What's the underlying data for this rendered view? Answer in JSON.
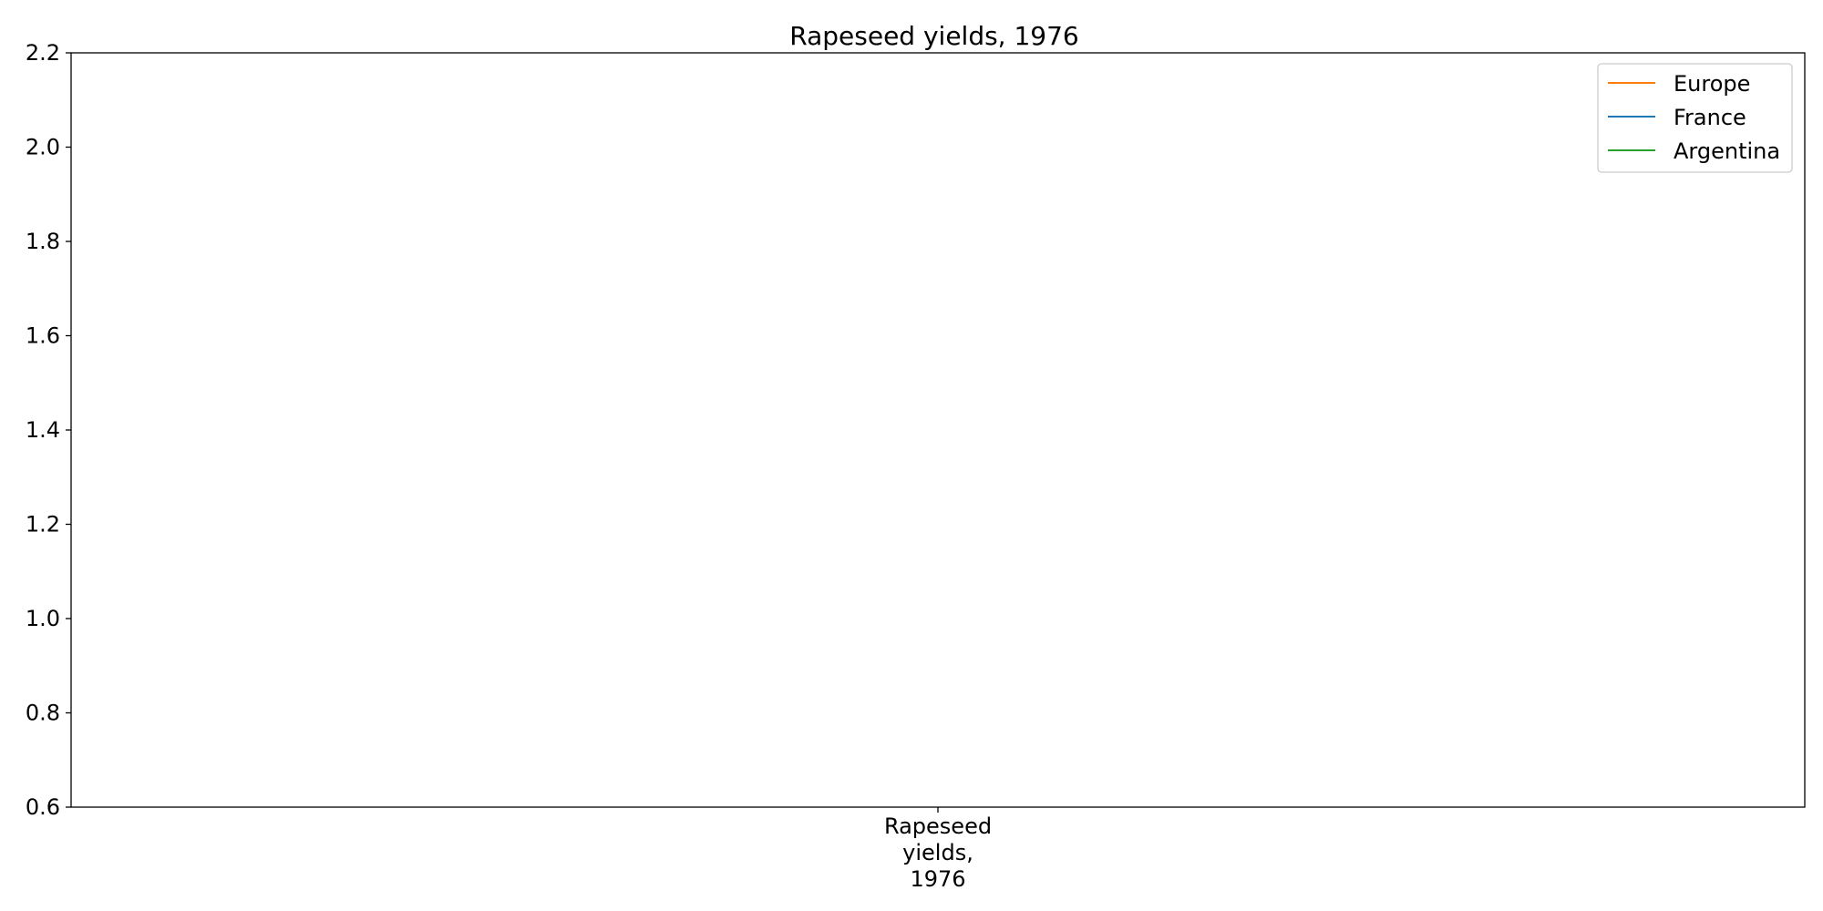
{
  "chart_data": {
    "type": "line",
    "title": "Rapeseed yields, 1976",
    "xlabel": "",
    "ylabel": "",
    "categories": [
      "Rapeseed yields, 1976"
    ],
    "category_label_lines": [
      "Rapeseed",
      "yields,",
      "1976"
    ],
    "ylim": [
      0.6,
      2.2
    ],
    "yticks": [
      "0.6",
      "0.8",
      "1.0",
      "1.2",
      "1.4",
      "1.6",
      "1.8",
      "2.0",
      "2.2"
    ],
    "grid": false,
    "legend_position": "top-right",
    "series": [
      {
        "name": "Europe",
        "color": "#ff7f0e"
      },
      {
        "name": "France",
        "color": "#1f77b4"
      },
      {
        "name": "Argentina",
        "color": "#2ca02c"
      }
    ]
  }
}
